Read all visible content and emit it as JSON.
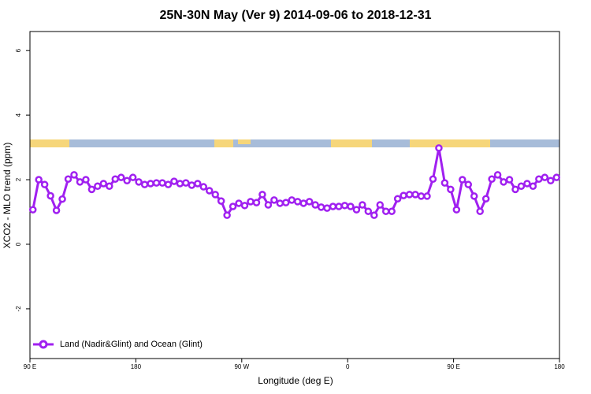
{
  "chart_data": {
    "type": "line",
    "title": "25N-30N May (Ver 9)   2014-09-06 to 2018-12-31",
    "x_label": "Longitude (deg E)",
    "y_label": "XCO2 - MLO trend (ppm)",
    "x": [
      92.5,
      97.5,
      102.5,
      107.5,
      112.5,
      117.5,
      122.5,
      127.5,
      132.5,
      137.5,
      142.5,
      147.5,
      152.5,
      157.5,
      162.5,
      167.5,
      172.5,
      177.5,
      182.5,
      187.5,
      192.5,
      197.5,
      202.5,
      207.5,
      212.5,
      217.5,
      222.5,
      227.5,
      232.5,
      237.5,
      242.5,
      247.5,
      252.5,
      257.5,
      262.5,
      267.5,
      272.5,
      277.5,
      282.5,
      287.5,
      292.5,
      297.5,
      302.5,
      307.5,
      312.5,
      317.5,
      322.5,
      327.5,
      332.5,
      337.5,
      342.5,
      347.5,
      352.5,
      357.5,
      362.5,
      367.5,
      372.5,
      377.5,
      382.5,
      387.5,
      392.5,
      397.5,
      402.5,
      407.5,
      412.5,
      417.5,
      422.5,
      427.5,
      432.5,
      437.5,
      442.5,
      447.5,
      452.5,
      457.5,
      462.5,
      467.5,
      472.5,
      477.5,
      482.5,
      487.5,
      492.5,
      497.5,
      502.5,
      507.5,
      512.5,
      517.5,
      522.5,
      527.5,
      532.5,
      537.5
    ],
    "series": [
      {
        "name": "Land (Nadir&Glint) and Ocean (Glint)",
        "color": "#a020f0",
        "values": [
          1.07,
          2.0,
          1.85,
          1.5,
          1.05,
          1.4,
          2.02,
          2.15,
          1.93,
          2.0,
          1.7,
          1.8,
          1.88,
          1.8,
          2.02,
          2.07,
          1.97,
          2.07,
          1.93,
          1.85,
          1.88,
          1.9,
          1.9,
          1.85,
          1.95,
          1.88,
          1.9,
          1.83,
          1.88,
          1.78,
          1.66,
          1.54,
          1.34,
          0.9,
          1.17,
          1.27,
          1.2,
          1.32,
          1.29,
          1.54,
          1.22,
          1.37,
          1.27,
          1.29,
          1.37,
          1.32,
          1.27,
          1.32,
          1.22,
          1.15,
          1.12,
          1.17,
          1.17,
          1.2,
          1.17,
          1.07,
          1.22,
          1.02,
          0.9,
          1.22,
          1.02,
          1.02,
          1.41,
          1.51,
          1.54,
          1.54,
          1.49,
          1.49,
          2.02,
          2.98,
          1.9,
          1.7,
          1.07,
          2.0,
          1.85,
          1.49,
          1.02,
          1.41,
          2.02,
          2.15,
          1.93,
          2.0,
          1.7,
          1.8,
          1.88,
          1.8,
          2.02,
          2.07,
          1.97,
          2.07
        ]
      }
    ],
    "xlim": [
      90,
      540
    ],
    "ylim": [
      -3.54,
      6.59
    ],
    "xticks": [
      {
        "value": 90,
        "label": "90 E"
      },
      180,
      {
        "value": 270,
        "label": "90 W"
      },
      {
        "value": 360,
        "label": "0"
      },
      {
        "value": 450,
        "label": "90 E"
      },
      180
    ],
    "yticks": [
      -2,
      0,
      2,
      4,
      6
    ],
    "legend": "bottom-left"
  }
}
